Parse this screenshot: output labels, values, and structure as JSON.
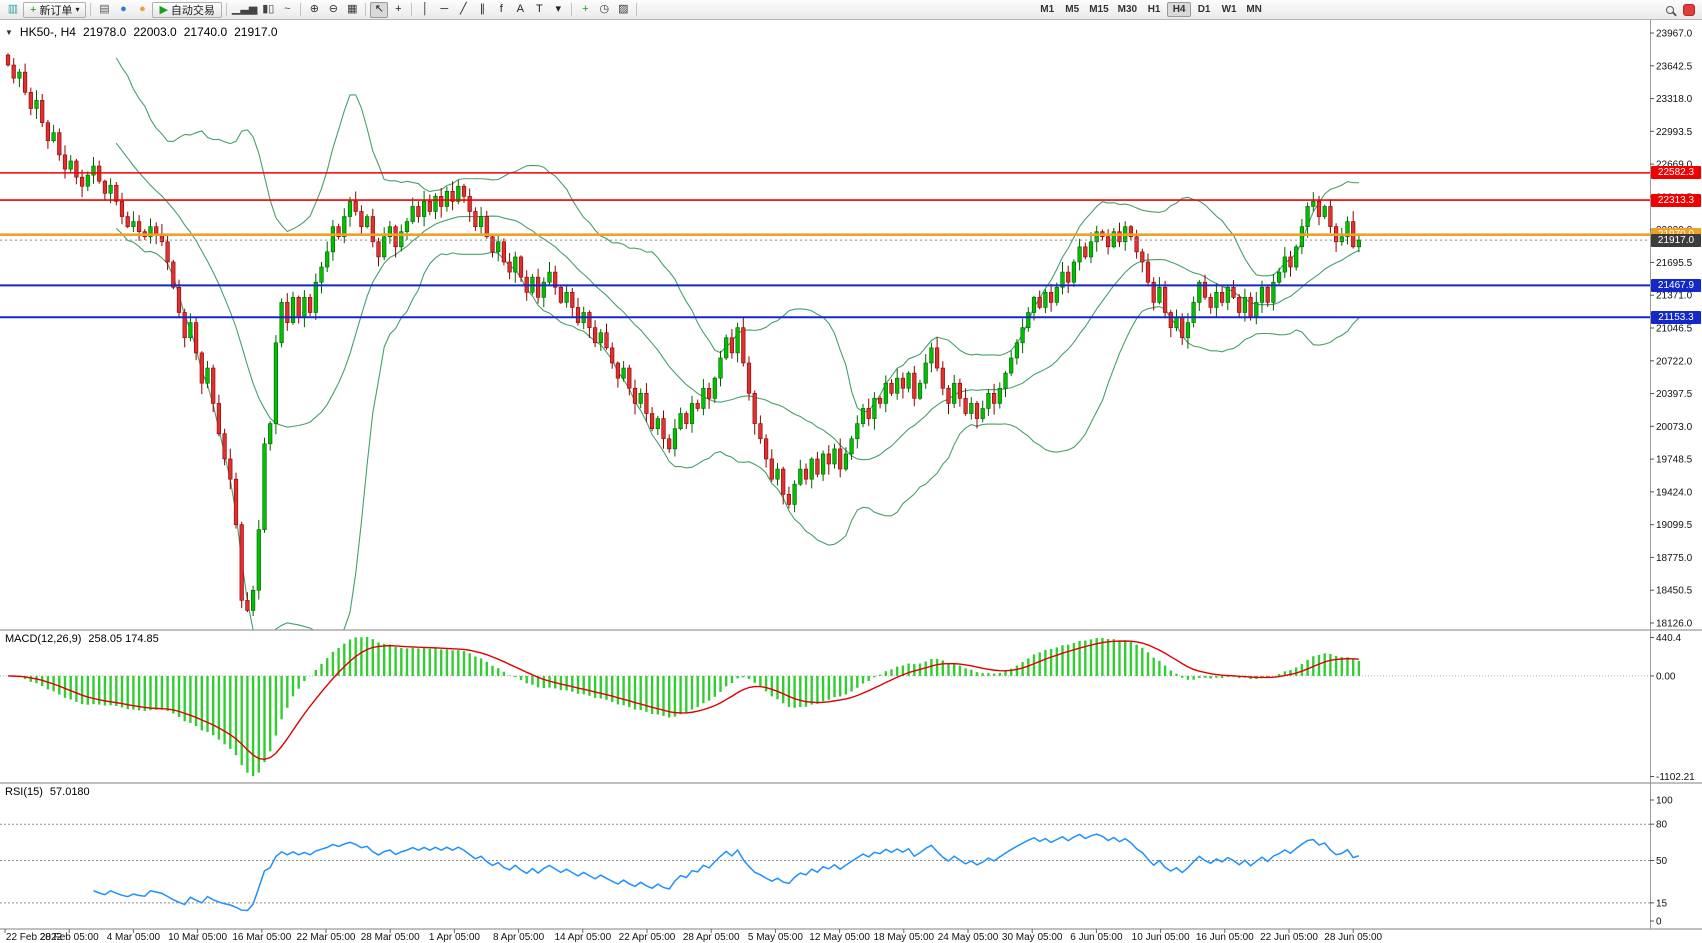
{
  "toolbar": {
    "items": [
      {
        "type": "icon",
        "name": "new-chart-icon",
        "glyph": "▥",
        "color": "#2e9e9e"
      },
      {
        "type": "button",
        "name": "new-order-button",
        "glyph": "+",
        "glyph_color": "#149414",
        "label": "新订单",
        "caret": "▾"
      },
      {
        "type": "sep"
      },
      {
        "type": "icon",
        "name": "profiles-icon",
        "glyph": "▤",
        "color": "#555555"
      },
      {
        "type": "icon",
        "name": "market-watch-icon",
        "glyph": "●",
        "color": "#2f7fd0"
      },
      {
        "type": "icon",
        "name": "data-window-icon",
        "glyph": "●",
        "color": "#e8a33d"
      },
      {
        "type": "button",
        "name": "autotrade-button",
        "glyph": "▶",
        "glyph_color": "#18a018",
        "label": "自动交易"
      },
      {
        "type": "sep"
      },
      {
        "type": "icon",
        "name": "bar-chart-icon",
        "glyph": "▁▃▅",
        "color": "#444444"
      },
      {
        "type": "icon",
        "name": "candle-chart-icon",
        "glyph": "▮▯",
        "color": "#444444"
      },
      {
        "type": "icon",
        "name": "line-chart-icon",
        "glyph": "~",
        "color": "#444444"
      },
      {
        "type": "sep"
      },
      {
        "type": "icon",
        "name": "zoom-in-icon",
        "glyph": "⊕",
        "color": "#333333"
      },
      {
        "type": "icon",
        "name": "zoom-out-icon",
        "glyph": "⊖",
        "color": "#333333"
      },
      {
        "type": "icon",
        "name": "tile-windows-icon",
        "glyph": "▦",
        "color": "#333333"
      },
      {
        "type": "sep"
      },
      {
        "type": "icon",
        "name": "cursor-icon",
        "glyph": "↖",
        "color": "#222222",
        "active": true
      },
      {
        "type": "icon",
        "name": "crosshair-icon",
        "glyph": "+",
        "color": "#222222"
      },
      {
        "type": "sep"
      },
      {
        "type": "icon",
        "name": "vertical-line-icon",
        "glyph": "│",
        "color": "#222222"
      },
      {
        "type": "icon",
        "name": "horizontal-line-icon",
        "glyph": "─",
        "color": "#222222"
      },
      {
        "type": "icon",
        "name": "trendline-icon",
        "glyph": "╱",
        "color": "#222222"
      },
      {
        "type": "icon",
        "name": "channel-icon",
        "glyph": "∥",
        "color": "#222222"
      },
      {
        "type": "icon",
        "name": "fibonacci-icon",
        "glyph": "f",
        "color": "#222222"
      },
      {
        "type": "icon",
        "name": "text-icon",
        "glyph": "A",
        "color": "#222222"
      },
      {
        "type": "icon",
        "name": "label-icon",
        "glyph": "T",
        "color": "#222222"
      },
      {
        "type": "icon",
        "name": "arrows-icon",
        "glyph": "▾",
        "color": "#222222"
      },
      {
        "type": "sep"
      },
      {
        "type": "icon",
        "name": "indicators-icon",
        "glyph": "+",
        "color": "#18a018"
      },
      {
        "type": "icon",
        "name": "periods-icon",
        "glyph": "◷",
        "color": "#333333"
      },
      {
        "type": "icon",
        "name": "templates-icon",
        "glyph": "▨",
        "color": "#333333"
      },
      {
        "type": "sep"
      }
    ],
    "timeframes": {
      "options": [
        "M1",
        "M5",
        "M15",
        "M30",
        "H1",
        "H4",
        "D1",
        "W1",
        "MN"
      ],
      "active": "H4"
    }
  },
  "chart_data": {
    "type": "candlestick",
    "symbol": "HK50-",
    "timeframe": "H4",
    "title": {
      "symbol_period": "HK50-, H4",
      "open": "21978.0",
      "high": "22003.0",
      "low": "21740.0",
      "close": "21917.0"
    },
    "closes": [
      23650,
      23520,
      23580,
      23380,
      23220,
      23300,
      23080,
      22900,
      22980,
      22760,
      22620,
      22700,
      22540,
      22450,
      22560,
      22650,
      22500,
      22380,
      22460,
      22300,
      22150,
      22050,
      22100,
      22000,
      21950,
      22050,
      21980,
      21900,
      21700,
      21450,
      21200,
      20950,
      21100,
      20800,
      20500,
      20650,
      20300,
      20000,
      19750,
      19550,
      19100,
      18350,
      18250,
      18450,
      19050,
      19900,
      20100,
      20900,
      21300,
      21100,
      21350,
      21150,
      21350,
      21200,
      21500,
      21650,
      21800,
      22050,
      21950,
      22150,
      22300,
      22200,
      22050,
      22150,
      21900,
      21750,
      21950,
      22050,
      21850,
      22000,
      22100,
      22250,
      22150,
      22300,
      22200,
      22350,
      22250,
      22400,
      22300,
      22450,
      22350,
      22200,
      22050,
      22150,
      21950,
      21800,
      21900,
      21700,
      21600,
      21750,
      21550,
      21400,
      21550,
      21350,
      21500,
      21600,
      21450,
      21300,
      21400,
      21250,
      21100,
      21200,
      21050,
      20900,
      21000,
      20850,
      20700,
      20550,
      20650,
      20450,
      20300,
      20400,
      20200,
      20050,
      20150,
      19950,
      19850,
      20050,
      20200,
      20100,
      20300,
      20250,
      20450,
      20350,
      20550,
      20750,
      20950,
      20800,
      21050,
      20700,
      20400,
      20100,
      19950,
      19750,
      19550,
      19650,
      19400,
      19300,
      19500,
      19650,
      19550,
      19750,
      19600,
      19800,
      19700,
      19850,
      19650,
      19800,
      19950,
      20100,
      20250,
      20150,
      20350,
      20300,
      20500,
      20400,
      20550,
      20450,
      20600,
      20350,
      20500,
      20700,
      20850,
      20650,
      20450,
      20300,
      20500,
      20350,
      20200,
      20300,
      20150,
      20250,
      20400,
      20300,
      20450,
      20600,
      20750,
      20900,
      21050,
      21200,
      21350,
      21250,
      21400,
      21300,
      21450,
      21600,
      21500,
      21700,
      21850,
      21750,
      21900,
      22000,
      21950,
      21850,
      22000,
      21900,
      22050,
      21950,
      21800,
      21700,
      21500,
      21300,
      21450,
      21200,
      21050,
      21150,
      20950,
      21100,
      21300,
      21500,
      21350,
      21250,
      21400,
      21300,
      21450,
      21350,
      21200,
      21350,
      21150,
      21300,
      21450,
      21300,
      21500,
      21600,
      21750,
      21650,
      21850,
      22050,
      22250,
      22300,
      22150,
      22250,
      22050,
      21900,
      21950,
      22100,
      21850,
      21917
    ],
    "price_axis_labels": [
      "23967.0",
      "23642.5",
      "23318.0",
      "22993.5",
      "22669.0",
      "22344.5",
      "22020.0",
      "21695.5",
      "21371.0",
      "21046.5",
      "20722.0",
      "20397.5",
      "20073.0",
      "19748.5",
      "19424.0",
      "19099.5",
      "18775.0",
      "18450.5",
      "18126.0"
    ],
    "time_labels": [
      "22 Feb 2022",
      "28 Feb 05:00",
      "4 Mar 05:00",
      "10 Mar 05:00",
      "16 Mar 05:00",
      "22 Mar 05:00",
      "28 Mar 05:00",
      "1 Apr 05:00",
      "8 Apr 05:00",
      "14 Apr 05:00",
      "22 Apr 05:00",
      "28 Apr 05:00",
      "5 May 05:00",
      "12 May 05:00",
      "18 May 05:00",
      "24 May 05:00",
      "30 May 05:00",
      "6 Jun 05:00",
      "10 Jun 05:00",
      "16 Jun 05:00",
      "22 Jun 05:00",
      "28 Jun 05:00"
    ],
    "horizontal_lines": [
      {
        "price": 22582.3,
        "label": "22582.3",
        "color": "#f00000",
        "width": 1.6
      },
      {
        "price": 22313.3,
        "label": "22313.3",
        "color": "#f00000",
        "width": 1.6
      },
      {
        "price": 21970.0,
        "label": "21970.0",
        "color": "#f0a022",
        "width": 2.6
      },
      {
        "price": 21467.9,
        "label": "21467.9",
        "color": "#1428c8",
        "width": 2.0
      },
      {
        "price": 21153.3,
        "label": "21153.3",
        "color": "#1428c8",
        "width": 2.0
      }
    ],
    "current_price": {
      "value": 21917.0,
      "label": "21917.0",
      "badge_color": "#3c3c3c"
    },
    "bollinger": {
      "period": 20,
      "deviation": 2,
      "color": "#46a06b"
    },
    "candle_colors": {
      "up_fill": "#00c000",
      "up_border": "#006000",
      "down_fill": "#e03030",
      "down_border": "#8b0000"
    },
    "indicators": [
      {
        "name": "MACD",
        "label": "MACD(12,26,9)",
        "values_text": "258.05 174.85",
        "axis_labels": [
          "440.4",
          "0.00",
          "-1102.21"
        ],
        "histogram_color": "#32cd32",
        "signal_color": "#e00000"
      },
      {
        "name": "RSI",
        "label": "RSI(15)",
        "value": "57.0180",
        "axis_labels": [
          100,
          80,
          50,
          15,
          0
        ],
        "levels": [
          80,
          50,
          15
        ],
        "line_color": "#1e90ff"
      }
    ]
  }
}
